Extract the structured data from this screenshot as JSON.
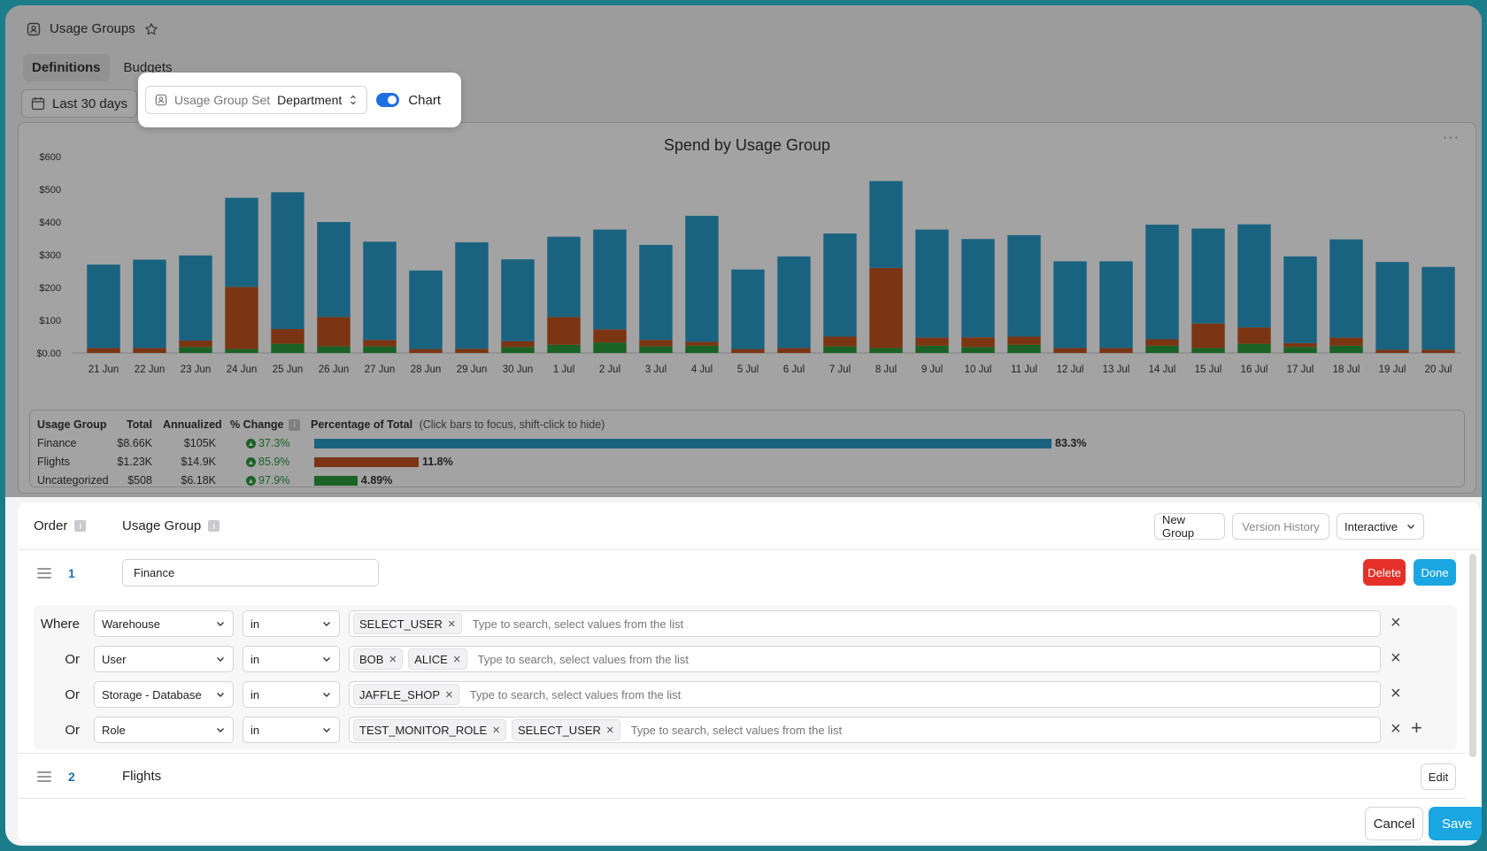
{
  "header": {
    "title": "Usage Groups"
  },
  "tabs": [
    {
      "label": "Definitions"
    },
    {
      "label": "Budgets"
    }
  ],
  "date_range": {
    "label": "Last 30 days"
  },
  "popup": {
    "set_label": "Usage Group Set",
    "set_value": "Department",
    "chart_toggle_label": "Chart"
  },
  "chart_data": {
    "type": "bar",
    "stacked": true,
    "title": "Spend by Usage Group",
    "ylim": [
      0,
      600
    ],
    "yticks": [
      "$0.00",
      "$100",
      "$200",
      "$300",
      "$400",
      "$500",
      "$600"
    ],
    "categories": [
      "21 Jun",
      "22 Jun",
      "23 Jun",
      "24 Jun",
      "25 Jun",
      "26 Jun",
      "27 Jun",
      "28 Jun",
      "29 Jun",
      "30 Jun",
      "1 Jul",
      "2 Jul",
      "3 Jul",
      "4 Jul",
      "5 Jul",
      "6 Jul",
      "7 Jul",
      "8 Jul",
      "9 Jul",
      "10 Jul",
      "11 Jul",
      "12 Jul",
      "13 Jul",
      "14 Jul",
      "15 Jul",
      "16 Jul",
      "17 Jul",
      "18 Jul",
      "19 Jul",
      "20 Jul"
    ],
    "series": [
      {
        "name": "Uncategorized",
        "color": "#2a9a3a",
        "values": [
          0,
          0,
          18,
          12,
          28,
          20,
          20,
          0,
          0,
          18,
          25,
          32,
          20,
          22,
          0,
          0,
          20,
          15,
          22,
          18,
          25,
          0,
          0,
          22,
          15,
          28,
          18,
          22,
          0,
          0
        ]
      },
      {
        "name": "Flights",
        "color": "#c0531e",
        "values": [
          15,
          15,
          20,
          190,
          45,
          90,
          20,
          12,
          13,
          18,
          85,
          40,
          20,
          12,
          12,
          15,
          30,
          245,
          25,
          30,
          25,
          15,
          15,
          20,
          75,
          50,
          12,
          25,
          10,
          10
        ]
      },
      {
        "name": "Finance",
        "color": "#2a9cc9",
        "values": [
          255,
          270,
          260,
          272,
          418,
          290,
          300,
          240,
          325,
          250,
          245,
          305,
          290,
          385,
          243,
          280,
          315,
          265,
          330,
          300,
          310,
          265,
          265,
          350,
          290,
          315,
          265,
          300,
          268,
          253
        ]
      }
    ]
  },
  "legend_table": {
    "headers": [
      "Usage Group",
      "Total",
      "Annualized",
      "% Change",
      "Percentage of Total"
    ],
    "hint": "(Click bars to focus, shift-click to hide)",
    "rows": [
      {
        "group": "Finance",
        "total": "$8.66K",
        "annualized": "$105K",
        "change": "37.3%",
        "pct_label": "83.3%",
        "pct": 83.3,
        "color": "#2a9cc9"
      },
      {
        "group": "Flights",
        "total": "$1.23K",
        "annualized": "$14.9K",
        "change": "85.9%",
        "pct_label": "11.8%",
        "pct": 11.8,
        "color": "#c0531e"
      },
      {
        "group": "Uncategorized",
        "total": "$508",
        "annualized": "$6.18K",
        "change": "97.9%",
        "pct_label": "4.89%",
        "pct": 4.89,
        "color": "#2a9a3a"
      }
    ]
  },
  "editor": {
    "order_label": "Order",
    "group_label": "Usage Group",
    "new_group": "New Group",
    "version_history": "Version History",
    "mode": "Interactive",
    "delete": "Delete",
    "done": "Done",
    "edit": "Edit",
    "cancel": "Cancel",
    "save": "Save",
    "groups": [
      {
        "order": "1",
        "name": "Finance"
      },
      {
        "order": "2",
        "name": "Flights"
      }
    ],
    "conditions": [
      {
        "label": "Where",
        "field": "Warehouse",
        "op": "in",
        "tags": [
          "SELECT_USER"
        ]
      },
      {
        "label": "Or",
        "field": "User",
        "op": "in",
        "tags": [
          "BOB",
          "ALICE"
        ]
      },
      {
        "label": "Or",
        "field": "Storage - Database",
        "op": "in",
        "tags": [
          "JAFFLE_SHOP"
        ]
      },
      {
        "label": "Or",
        "field": "Role",
        "op": "in",
        "tags": [
          "TEST_MONITOR_ROLE",
          "SELECT_USER"
        ]
      }
    ],
    "placeholder": "Type to search, select values from the list"
  }
}
